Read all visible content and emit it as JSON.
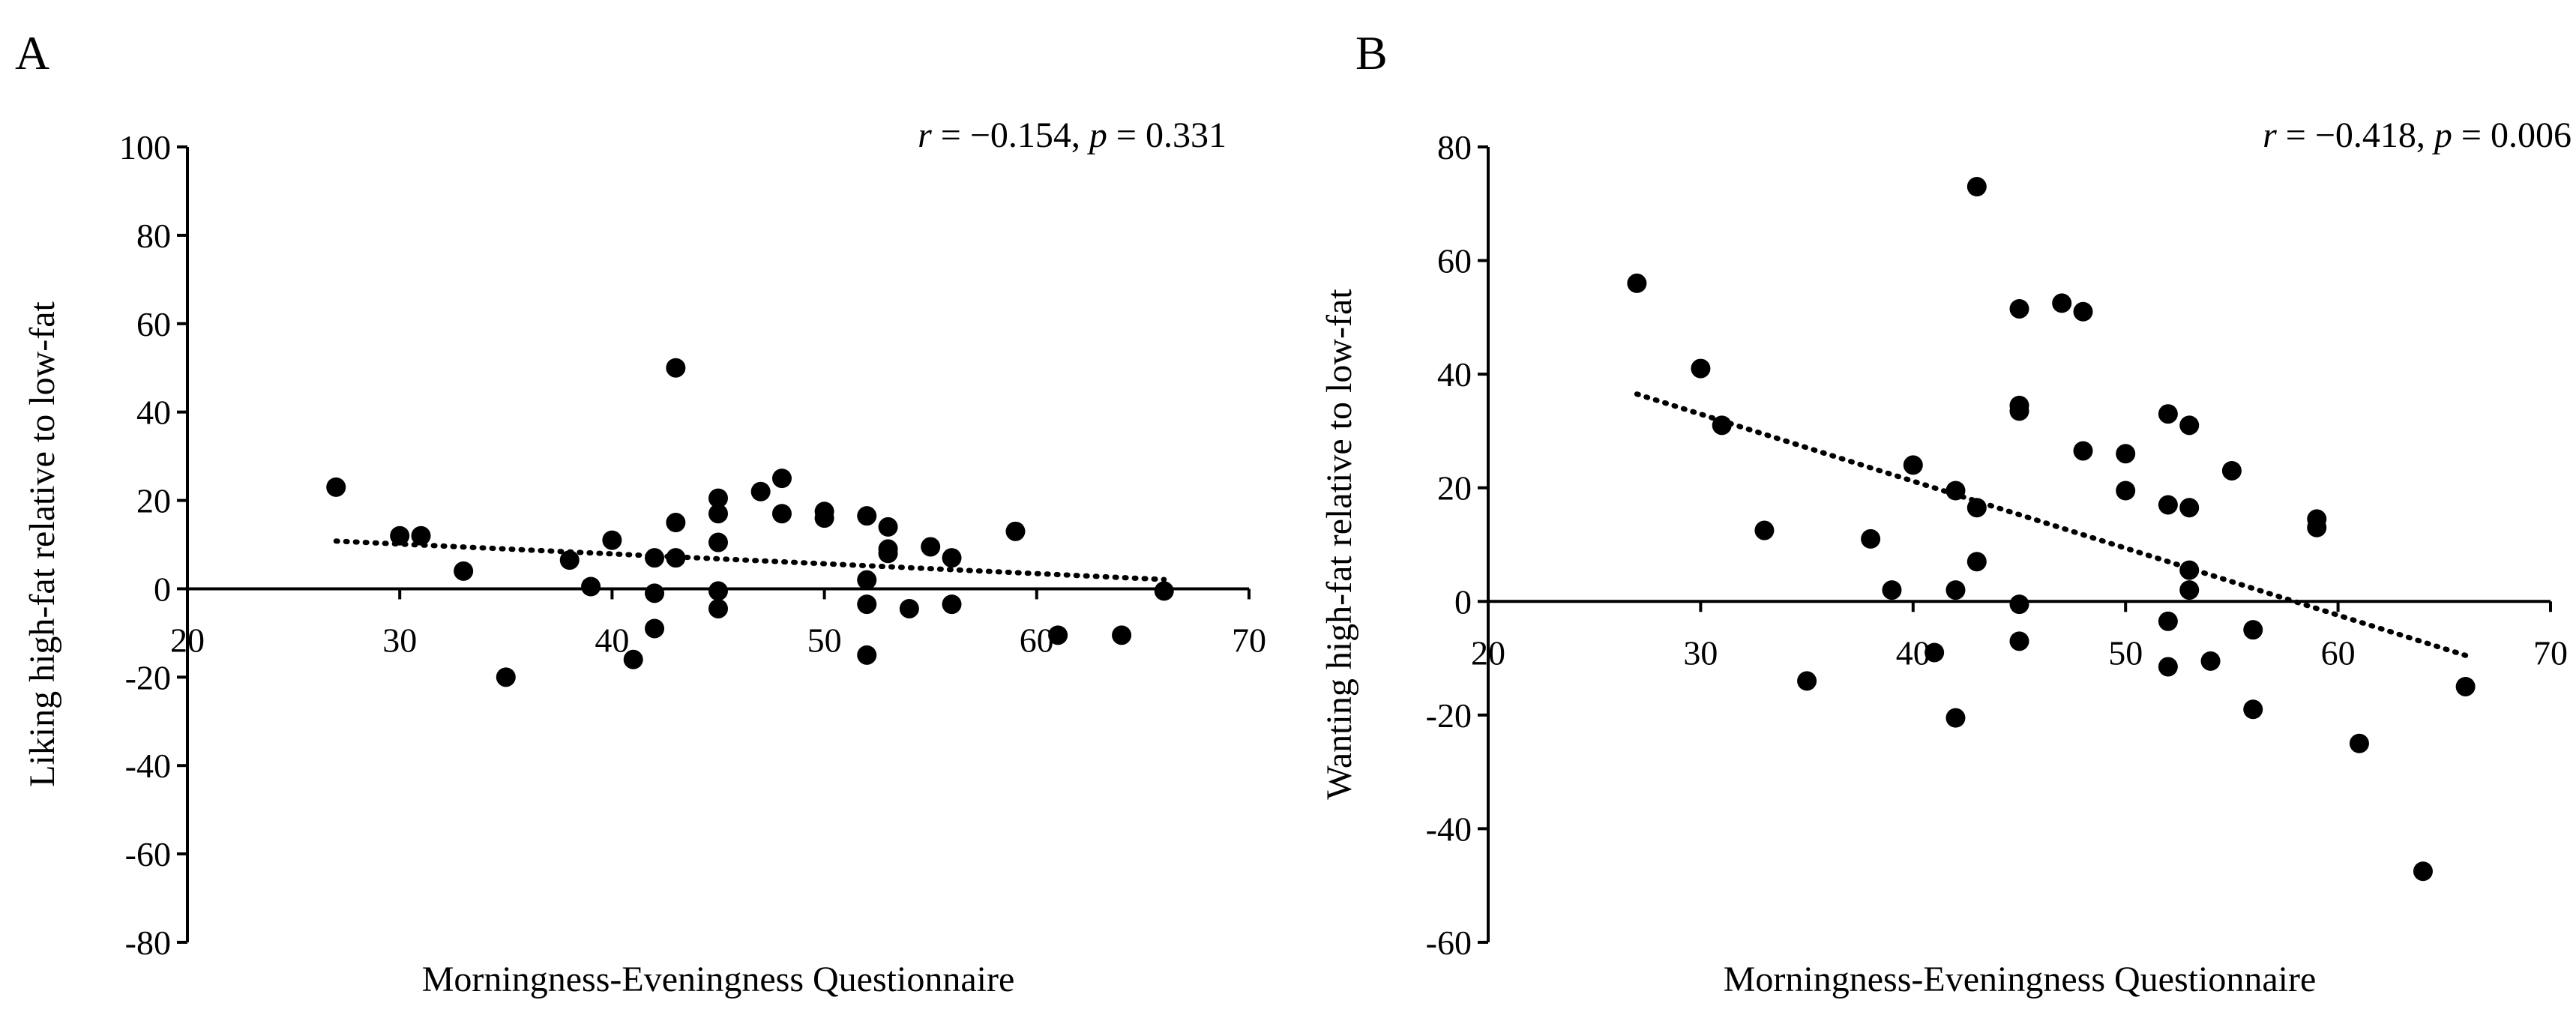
{
  "chart_data": [
    {
      "type": "scatter",
      "panel_label": "A",
      "xlabel": "Morningness-Eveningness Questionnaire",
      "ylabel": "Liking high-fat relative to low-fat",
      "xlim": [
        20,
        70
      ],
      "ylim": [
        -80,
        100
      ],
      "xticks": [
        20,
        30,
        40,
        50,
        60,
        70
      ],
      "yticks": [
        100,
        80,
        60,
        40,
        20,
        0,
        -20,
        -40,
        -60,
        -80
      ],
      "annotation": {
        "r_symbol": "r",
        "r_text": " = −0.154, ",
        "p_symbol": "p",
        "p_text": " = 0.331"
      },
      "trendline": {
        "x": [
          27,
          66
        ],
        "y": [
          10.8,
          2.1
        ],
        "style": "dotted"
      },
      "grid": false,
      "points": [
        {
          "x": 27,
          "y": 23
        },
        {
          "x": 30,
          "y": 12
        },
        {
          "x": 31,
          "y": 12
        },
        {
          "x": 33,
          "y": 4
        },
        {
          "x": 35,
          "y": -20
        },
        {
          "x": 38,
          "y": 6.5
        },
        {
          "x": 39,
          "y": 0.5
        },
        {
          "x": 40,
          "y": 11
        },
        {
          "x": 41,
          "y": -16
        },
        {
          "x": 42,
          "y": 7
        },
        {
          "x": 42,
          "y": -1
        },
        {
          "x": 42,
          "y": -9
        },
        {
          "x": 43,
          "y": 50
        },
        {
          "x": 43,
          "y": 15
        },
        {
          "x": 43,
          "y": 7
        },
        {
          "x": 45,
          "y": 20.5
        },
        {
          "x": 45,
          "y": 17
        },
        {
          "x": 45,
          "y": 10.5
        },
        {
          "x": 45,
          "y": -0.5
        },
        {
          "x": 45,
          "y": -4.5
        },
        {
          "x": 47,
          "y": 22
        },
        {
          "x": 48,
          "y": 25
        },
        {
          "x": 48,
          "y": 17
        },
        {
          "x": 50,
          "y": 17.5
        },
        {
          "x": 50,
          "y": 16
        },
        {
          "x": 52,
          "y": 16.5
        },
        {
          "x": 52,
          "y": 2
        },
        {
          "x": 52,
          "y": -3.5
        },
        {
          "x": 52,
          "y": -15
        },
        {
          "x": 53,
          "y": 14
        },
        {
          "x": 53,
          "y": 9
        },
        {
          "x": 53,
          "y": 8
        },
        {
          "x": 54,
          "y": -4.5
        },
        {
          "x": 55,
          "y": 9.5
        },
        {
          "x": 56,
          "y": 7
        },
        {
          "x": 56,
          "y": -3.5
        },
        {
          "x": 59,
          "y": 13
        },
        {
          "x": 61,
          "y": -10.5
        },
        {
          "x": 64,
          "y": -10.5
        },
        {
          "x": 66,
          "y": -0.5
        }
      ]
    },
    {
      "type": "scatter",
      "panel_label": "B",
      "xlabel": "Morningness-Eveningness Questionnaire",
      "ylabel": "Wanting high-fat relative to low-fat",
      "xlim": [
        20,
        70
      ],
      "ylim": [
        -60,
        80
      ],
      "xticks": [
        20,
        30,
        40,
        50,
        60,
        70
      ],
      "yticks": [
        80,
        60,
        40,
        20,
        0,
        -20,
        -40,
        -60
      ],
      "annotation": {
        "r_symbol": "r",
        "r_text": " = −0.418, ",
        "p_symbol": "p",
        "p_text": " = 0.006"
      },
      "trendline": {
        "x": [
          27,
          66
        ],
        "y": [
          36.5,
          -9.5
        ],
        "style": "dotted"
      },
      "grid": false,
      "points": [
        {
          "x": 27,
          "y": 56
        },
        {
          "x": 30,
          "y": 41
        },
        {
          "x": 31,
          "y": 31
        },
        {
          "x": 33,
          "y": 12.5
        },
        {
          "x": 35,
          "y": -14
        },
        {
          "x": 38,
          "y": 11
        },
        {
          "x": 39,
          "y": 2
        },
        {
          "x": 40,
          "y": 24
        },
        {
          "x": 41,
          "y": -9
        },
        {
          "x": 42,
          "y": 19.5
        },
        {
          "x": 42,
          "y": 2
        },
        {
          "x": 42,
          "y": -20.5
        },
        {
          "x": 43,
          "y": 73
        },
        {
          "x": 43,
          "y": 16.5
        },
        {
          "x": 43,
          "y": 7
        },
        {
          "x": 45,
          "y": 51.5
        },
        {
          "x": 45,
          "y": 34.5
        },
        {
          "x": 45,
          "y": 33.5
        },
        {
          "x": 45,
          "y": -0.5
        },
        {
          "x": 45,
          "y": -7
        },
        {
          "x": 47,
          "y": 52.5
        },
        {
          "x": 48,
          "y": 51
        },
        {
          "x": 48,
          "y": 26.5
        },
        {
          "x": 50,
          "y": 26
        },
        {
          "x": 50,
          "y": 19.5
        },
        {
          "x": 52,
          "y": 33
        },
        {
          "x": 52,
          "y": 17
        },
        {
          "x": 52,
          "y": -3.5
        },
        {
          "x": 52,
          "y": -11.5
        },
        {
          "x": 53,
          "y": 31
        },
        {
          "x": 53,
          "y": 16.5
        },
        {
          "x": 53,
          "y": 5.5
        },
        {
          "x": 53,
          "y": 2
        },
        {
          "x": 54,
          "y": -10.5
        },
        {
          "x": 55,
          "y": 23
        },
        {
          "x": 56,
          "y": -5
        },
        {
          "x": 56,
          "y": -19
        },
        {
          "x": 59,
          "y": 14.5
        },
        {
          "x": 59,
          "y": 13
        },
        {
          "x": 61,
          "y": -25
        },
        {
          "x": 64,
          "y": -47.5
        },
        {
          "x": 66,
          "y": -15
        }
      ]
    }
  ]
}
